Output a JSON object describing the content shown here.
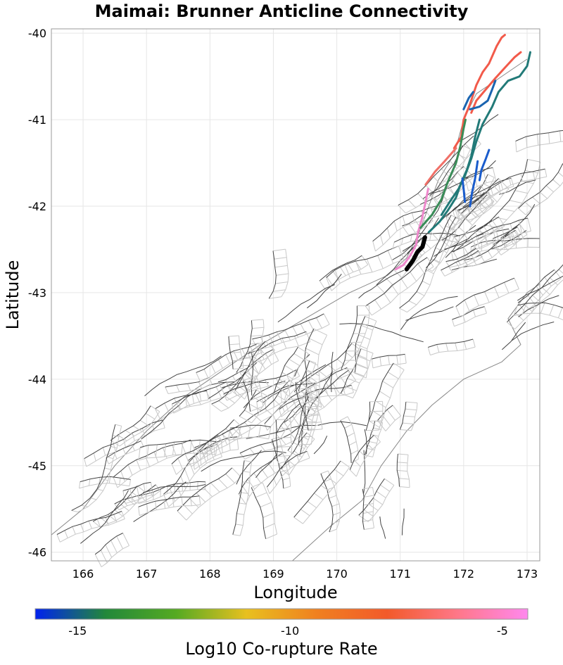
{
  "chart_data": {
    "type": "map",
    "title": "Maimai: Brunner Anticline Connectivity",
    "xlabel": "Longitude",
    "ylabel": "Latitude",
    "xlim": [
      165.5,
      173.2
    ],
    "ylim": [
      -46.1,
      -39.95
    ],
    "x_ticks": [
      166,
      167,
      168,
      169,
      170,
      171,
      172,
      173
    ],
    "y_ticks": [
      -40,
      -41,
      -42,
      -43,
      -44,
      -45,
      -46
    ],
    "grid": true,
    "colorbar": {
      "label": "Log10 Co-rupture Rate",
      "range": [
        -16,
        -4.4
      ],
      "ticks": [
        -15,
        -10,
        -5
      ],
      "stops": [
        "#0022ee",
        "#22883a",
        "#55aa22",
        "#e8c020",
        "#f08020",
        "#f25a2a",
        "#ff7788",
        "#ff88ee"
      ]
    },
    "target_fault": {
      "name": "Maimai: Brunner Anticline",
      "color": "#000000",
      "points": [
        [
          171.1,
          -42.73
        ],
        [
          171.2,
          -42.63
        ],
        [
          171.27,
          -42.53
        ],
        [
          171.35,
          -42.47
        ],
        [
          171.39,
          -42.36
        ]
      ]
    },
    "connected_ruptures": [
      {
        "rate": -5.5,
        "color": "#f25a4a",
        "points": [
          [
            171.85,
            -41.33
          ],
          [
            171.96,
            -41.2
          ],
          [
            172.0,
            -41.0
          ],
          [
            172.1,
            -40.82
          ],
          [
            172.2,
            -40.6
          ],
          [
            172.3,
            -40.45
          ],
          [
            172.4,
            -40.35
          ],
          [
            172.52,
            -40.15
          ],
          [
            172.6,
            -40.05
          ],
          [
            172.65,
            -40.02
          ]
        ]
      },
      {
        "rate": -5.4,
        "color": "#f25a4a",
        "points": [
          [
            172.12,
            -40.92
          ],
          [
            172.2,
            -40.78
          ],
          [
            172.35,
            -40.65
          ],
          [
            172.5,
            -40.52
          ],
          [
            172.65,
            -40.4
          ],
          [
            172.8,
            -40.28
          ],
          [
            172.9,
            -40.22
          ]
        ]
      },
      {
        "rate": -5.2,
        "color": "#f07068",
        "points": [
          [
            171.4,
            -41.75
          ],
          [
            171.55,
            -41.6
          ],
          [
            171.7,
            -41.48
          ],
          [
            171.88,
            -41.33
          ]
        ]
      },
      {
        "rate": -4.8,
        "color": "#ee88cc",
        "points": [
          [
            170.93,
            -42.73
          ],
          [
            171.05,
            -42.68
          ],
          [
            171.15,
            -42.58
          ],
          [
            171.25,
            -42.45
          ],
          [
            171.28,
            -42.3
          ],
          [
            171.34,
            -42.15
          ],
          [
            171.4,
            -41.95
          ],
          [
            171.44,
            -41.8
          ]
        ]
      },
      {
        "rate": -12.5,
        "color": "#3a8c58",
        "points": [
          [
            171.32,
            -42.25
          ],
          [
            171.5,
            -42.1
          ],
          [
            171.65,
            -41.92
          ],
          [
            171.75,
            -41.72
          ],
          [
            171.88,
            -41.5
          ],
          [
            171.95,
            -41.3
          ],
          [
            172.0,
            -41.1
          ],
          [
            172.03,
            -41.0
          ]
        ]
      },
      {
        "rate": -14.0,
        "color": "#227a78",
        "points": [
          [
            171.45,
            -42.3
          ],
          [
            171.62,
            -42.18
          ],
          [
            171.75,
            -42.05
          ],
          [
            171.88,
            -41.9
          ],
          [
            171.95,
            -41.75
          ],
          [
            172.05,
            -41.58
          ],
          [
            172.12,
            -41.42
          ],
          [
            172.18,
            -41.2
          ],
          [
            172.25,
            -41.0
          ]
        ]
      },
      {
        "rate": -14.2,
        "color": "#227a78",
        "points": [
          [
            171.65,
            -42.1
          ],
          [
            171.78,
            -41.95
          ],
          [
            171.92,
            -41.8
          ],
          [
            172.02,
            -41.65
          ],
          [
            172.12,
            -41.45
          ],
          [
            172.2,
            -41.25
          ],
          [
            172.3,
            -41.05
          ],
          [
            172.45,
            -40.85
          ],
          [
            172.55,
            -40.68
          ],
          [
            172.7,
            -40.55
          ],
          [
            172.88,
            -40.5
          ],
          [
            173.0,
            -40.38
          ],
          [
            173.05,
            -40.22
          ]
        ]
      },
      {
        "rate": -15.2,
        "color": "#1a5ccc",
        "points": [
          [
            171.98,
            -41.68
          ],
          [
            172.0,
            -41.8
          ],
          [
            172.02,
            -41.95
          ]
        ]
      },
      {
        "rate": -15.3,
        "color": "#1a5ccc",
        "points": [
          [
            172.1,
            -42.0
          ],
          [
            172.13,
            -41.85
          ],
          [
            172.18,
            -41.68
          ],
          [
            172.22,
            -41.48
          ]
        ]
      },
      {
        "rate": -15.4,
        "color": "#1a5ccc",
        "points": [
          [
            172.25,
            -41.7
          ],
          [
            172.28,
            -41.58
          ],
          [
            172.35,
            -41.45
          ],
          [
            172.4,
            -41.35
          ]
        ]
      },
      {
        "rate": -14.8,
        "color": "#1a64b0",
        "points": [
          [
            172.1,
            -40.88
          ],
          [
            172.25,
            -40.85
          ],
          [
            172.38,
            -40.78
          ],
          [
            172.45,
            -40.65
          ],
          [
            172.5,
            -40.55
          ]
        ]
      },
      {
        "rate": -15.0,
        "color": "#1a64b0",
        "points": [
          [
            172.0,
            -40.88
          ],
          [
            172.08,
            -40.75
          ],
          [
            172.15,
            -40.68
          ]
        ]
      }
    ]
  }
}
